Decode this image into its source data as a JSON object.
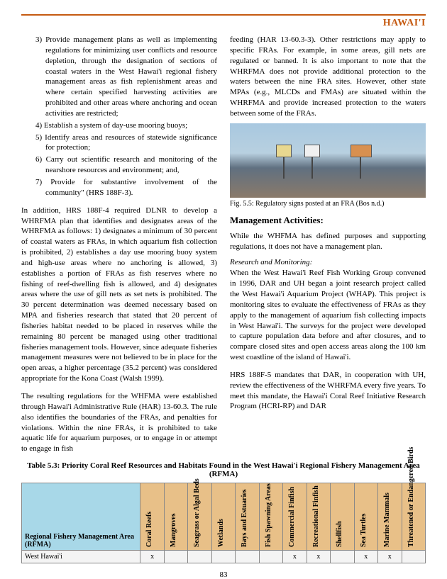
{
  "header": {
    "title": "HAWAI'I"
  },
  "leftColumn": {
    "list": [
      "3) Provide management plans as well as implementing regulations for minimizing user conflicts and resource depletion, through the designation of sections of coastal waters in the West Hawai'i regional fishery management areas as fish replenishment areas and where certain specified harvesting activities are prohibited and other areas where anchoring and ocean activities are restricted;",
      "4) Establish a system of day-use mooring buoys;",
      "5) Identify areas and resources of statewide significance for protection;",
      "6) Carry out scientific research and monitoring of the nearshore resources and environment; and,",
      "7) Provide for substantive involvement of the community\" (HRS 188F-3)."
    ],
    "para1": "In addition, HRS 188F-4 required DLNR to develop a WHRFMA plan that identifies and designates areas of the WHRFMA as follows: 1) designates a minimum of 30 percent of coastal waters as FRAs, in which aquarium fish collection is prohibited, 2) establishes a day use mooring buoy system and high-use areas where no anchoring is allowed, 3) establishes a portion of FRAs as fish reserves where no fishing of reef-dwelling fish is allowed, and 4) designates areas where the use of gill nets as set nets is prohibited. The 30 percent determination was deemed necessary based on MPA and fisheries research that stated that 20 percent of fisheries habitat needed to be placed in reserves while the remaining 80 percent be managed using other traditional fisheries management tools. However, since adequate fisheries management measures were not believed to be in place for the open areas, a higher percentage (35.2 percent) was considered appropriate for the Kona Coast (Walsh 1999).",
    "para2": "The resulting regulations for the WHFMA were established through Hawai'i Administrative Rule (HAR) 13-60.3. The rule also identifies the boundaries of the FRAs, and penalties for violations. Within the nine FRAs, it is prohibited to take aquatic life for aquarium purposes, or to engage in or attempt to engage in fish"
  },
  "rightColumn": {
    "para1": "feeding (HAR 13-60.3-3). Other restrictions may apply to specific FRAs. For example, in some areas, gill nets are regulated or banned. It is also important to note that the WHRFMA does not provide additional protection to the waters between the nine FRA sites. However, other state MPAs (e.g., MLCDs and FMAs) are situated within the WHRFMA and provide increased protection to the waters between some of the FRAs.",
    "figCaption": "Fig. 5.5: Regulatory signs posted at an FRA (Bos n.d.)",
    "mgmtHeading": "Management Activities:",
    "para2": "While the WHFMA has defined purposes and supporting regulations, it does not have a management plan.",
    "researchHeading": "Research and Monitoring:",
    "para3": "When the West Hawai'i Reef Fish Working Group convened in 1996, DAR and UH began a joint research project called the West Hawai'i Aquarium Project (WHAP). This project is monitoring sites to evaluate the effectiveness of FRAs as they apply to the management of aquarium fish collecting impacts in West Hawai'i. The surveys for the project were developed to capture population data before and after closures, and to compare closed sites and open access areas along the 100 km west coastline of the island of Hawai'i.",
    "para4": "HRS 188F-5 mandates that DAR, in cooperation with UH, review the effectiveness of the WHRFMA every five years. To meet this mandate, the Hawai'i Coral Reef Initiative Research Program (HCRI-RP) and DAR"
  },
  "table": {
    "title": "Table 5.3: Priority Coral Reef Resources and Habitats Found in the West Hawai'i Regional Fishery Management Area (RFMA)",
    "rowHeader": "Regional Fishery Management Area (RFMA)",
    "columns": [
      "Coral Reefs",
      "Mangroves",
      "Seagrass or Algal Beds",
      "Wetlands",
      "Bays and Estuaries",
      "Fish Spawning Areas",
      "Commercial Finfish",
      "Recreational Finfish",
      "Shellfish",
      "Sea Turtles",
      "Marine Mammals",
      "Threatened or Endangered Birds"
    ],
    "rowName": "West Hawai'i",
    "rowData": [
      "x",
      "",
      "",
      "",
      "",
      "",
      "x",
      "x",
      "",
      "x",
      "x",
      ""
    ]
  },
  "pageNumber": "83"
}
